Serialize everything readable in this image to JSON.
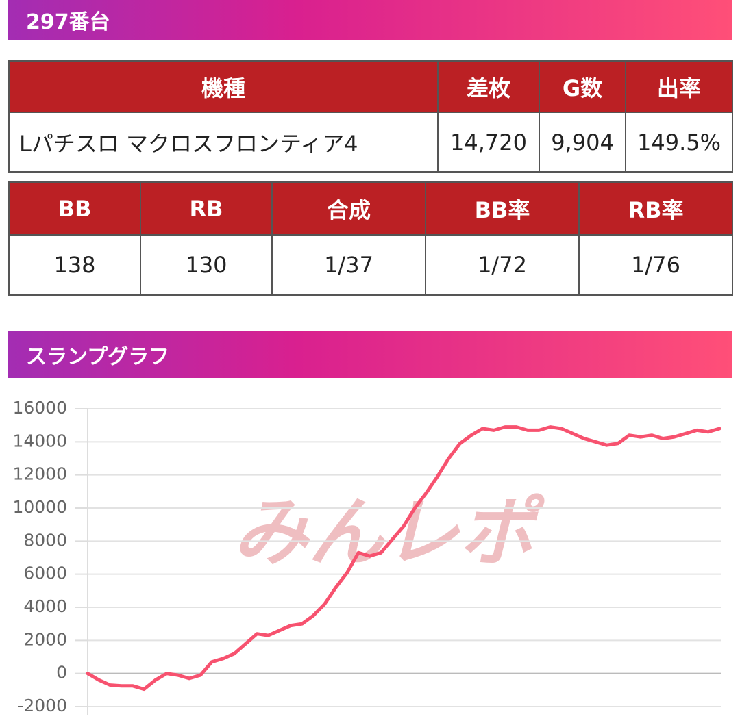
{
  "header": {
    "title": "297番台"
  },
  "machine_table": {
    "columns": [
      "機種",
      "差枚",
      "G数",
      "出率"
    ],
    "rows": [
      [
        "Lパチスロ マクロスフロンティア4",
        "14,720",
        "9,904",
        "149.5%"
      ]
    ]
  },
  "bonus_table": {
    "columns": [
      "BB",
      "RB",
      "合成",
      "BB率",
      "RB率"
    ],
    "rows": [
      [
        "138",
        "130",
        "1/37",
        "1/72",
        "1/76"
      ]
    ]
  },
  "section": {
    "title": "スランプグラフ"
  },
  "chart_data": {
    "type": "line",
    "watermark": "みんレポ",
    "series": [
      {
        "name": "差枚",
        "color": "#f7526f",
        "values": [
          0,
          -400,
          -700,
          -750,
          -750,
          -950,
          -400,
          0,
          -100,
          -300,
          -100,
          700,
          900,
          1200,
          1800,
          2400,
          2300,
          2600,
          2900,
          3000,
          3500,
          4200,
          5200,
          6100,
          7300,
          7100,
          7300,
          8100,
          8900,
          10000,
          10900,
          11900,
          13000,
          13900,
          14400,
          14800,
          14700,
          14900,
          14900,
          14700,
          14700,
          14900,
          14800,
          14500,
          14200,
          14000,
          13800,
          13900,
          14400,
          14300,
          14400,
          14200,
          14300,
          14500,
          14700,
          14600,
          14800
        ]
      }
    ],
    "ylim": [
      -2000,
      16000
    ],
    "yticks": [
      -2000,
      0,
      2000,
      4000,
      6000,
      8000,
      10000,
      12000,
      14000,
      16000
    ],
    "grid": true
  }
}
